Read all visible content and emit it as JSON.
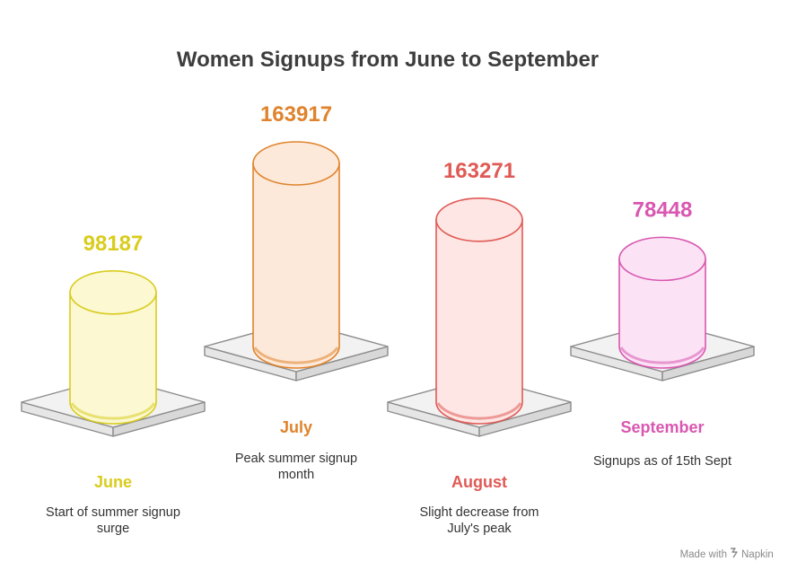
{
  "chart_data": {
    "type": "bar",
    "title": "Women Signups from June to September",
    "categories": [
      "June",
      "July",
      "August",
      "September"
    ],
    "values": [
      98187,
      163917,
      163271,
      78448
    ],
    "descriptions": [
      [
        "Start of summer signup",
        "surge"
      ],
      [
        "Peak summer signup",
        "month"
      ],
      [
        "Slight decrease from",
        "July's peak"
      ],
      [
        "Signups as of 15th Sept"
      ]
    ],
    "colors": [
      "#d9cc1e",
      "#e0832c",
      "#e05a55",
      "#d957b0"
    ],
    "fills": [
      "#fbf8d2",
      "#fde9da",
      "#fde6e4",
      "#fbe3f5"
    ]
  },
  "watermark": {
    "prefix": "Made with",
    "brand": "Napkin",
    "icon": "napkin-logo-icon"
  }
}
